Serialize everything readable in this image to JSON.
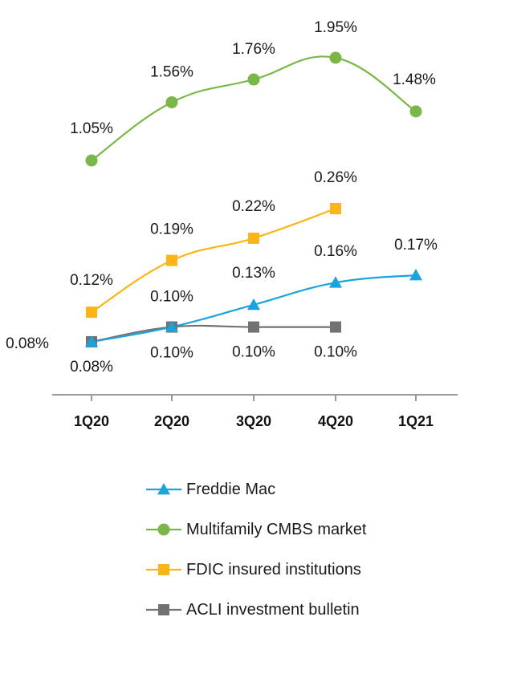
{
  "chart_data": {
    "type": "line",
    "categories": [
      "1Q20",
      "2Q20",
      "3Q20",
      "4Q20",
      "1Q21"
    ],
    "legend_placement": "bottom",
    "grid": false,
    "series": [
      {
        "name": "Freddie Mac",
        "marker": "triangle",
        "color": "#1BA3DC",
        "values": [
          0.08,
          0.1,
          0.13,
          0.16,
          0.17
        ],
        "labels": [
          "0.08%",
          "0.10%",
          "0.13%",
          "0.16%",
          "0.17%"
        ]
      },
      {
        "name": "Multifamily CMBS market",
        "marker": "circle",
        "color": "#7AB648",
        "values": [
          1.05,
          1.56,
          1.76,
          1.95,
          1.48
        ],
        "labels": [
          "1.05%",
          "1.56%",
          "1.76%",
          "1.95%",
          "1.48%"
        ]
      },
      {
        "name": "FDIC insured institutions",
        "marker": "square",
        "color": "#FBB515",
        "values": [
          0.12,
          0.19,
          0.22,
          0.26,
          null
        ],
        "labels": [
          "0.12%",
          "0.19%",
          "0.22%",
          "0.26%",
          null
        ]
      },
      {
        "name": "ACLI investment bulletin",
        "marker": "square",
        "color": "#727272",
        "values": [
          0.08,
          0.1,
          0.1,
          0.1,
          null
        ],
        "labels": [
          "0.08%",
          "0.10%",
          "0.10%",
          "0.10%",
          null
        ]
      }
    ]
  }
}
